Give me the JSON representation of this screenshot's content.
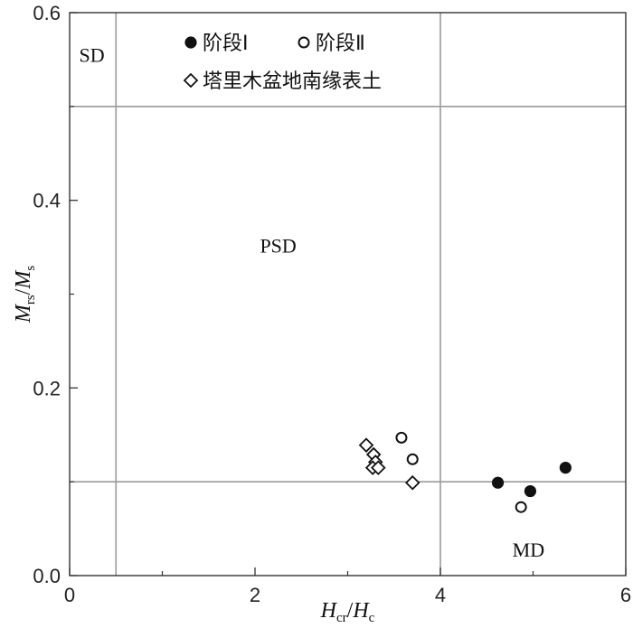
{
  "chart_data": {
    "type": "scatter",
    "xlabel": {
      "main": "H",
      "sub": "cr",
      "sep": "/",
      "main2": "H",
      "sub2": "c"
    },
    "ylabel": {
      "main": "M",
      "sub": "rs",
      "sep": "/",
      "main2": "M",
      "sub2": "s"
    },
    "xlim": [
      0,
      6
    ],
    "ylim": [
      0,
      0.6
    ],
    "x_ticks": [
      0,
      2,
      4,
      6
    ],
    "x_tick_labels": [
      "0",
      "2",
      "4",
      "6"
    ],
    "x_minor_ticks": [
      1,
      3,
      5
    ],
    "y_ticks": [
      0,
      0.2,
      0.4,
      0.6
    ],
    "y_tick_labels": [
      "0.0",
      "0.2",
      "0.4",
      "0.6"
    ],
    "y_minor_ticks": [
      0.1,
      0.3,
      0.5
    ],
    "grid": false,
    "reference_lines": {
      "vertical": [
        0.5,
        4
      ],
      "horizontal": [
        0.5,
        0.1
      ]
    },
    "region_labels": [
      {
        "text": "SD",
        "x": 0.24,
        "y": 0.555
      },
      {
        "text": "PSD",
        "x": 2.25,
        "y": 0.352
      },
      {
        "text": "MD",
        "x": 4.95,
        "y": 0.028
      }
    ],
    "legend_position": "top",
    "series": [
      {
        "name": "阶段Ⅰ",
        "marker": "filled-circle",
        "x": [
          4.62,
          4.97,
          5.35
        ],
        "y": [
          0.099,
          0.09,
          0.115
        ]
      },
      {
        "name": "阶段Ⅱ",
        "marker": "open-circle",
        "x": [
          3.58,
          3.7,
          4.87
        ],
        "y": [
          0.147,
          0.124,
          0.073
        ]
      },
      {
        "name": "塔里木盆地南缘表土",
        "marker": "open-diamond",
        "x": [
          3.2,
          3.28,
          3.3,
          3.27,
          3.33,
          3.7
        ],
        "y": [
          0.139,
          0.129,
          0.121,
          0.115,
          0.115,
          0.099
        ]
      }
    ]
  }
}
